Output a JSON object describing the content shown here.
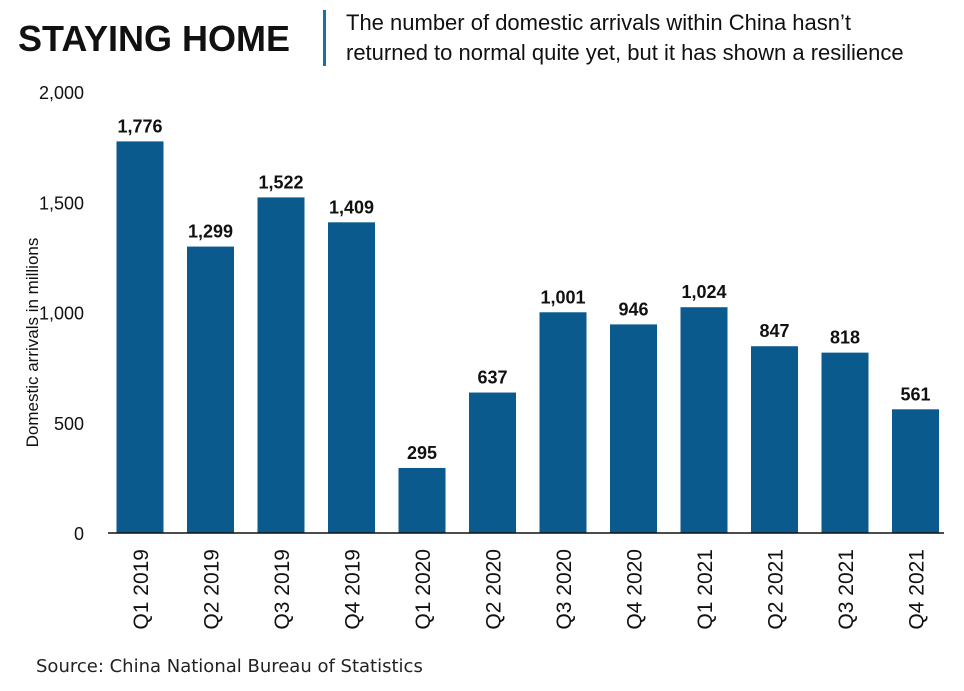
{
  "header": {
    "title": "STAYING HOME",
    "subtitle_line1": "The number of domestic arrivals within China hasn’t",
    "subtitle_line2": "returned to normal quite yet, but it has shown a resilience"
  },
  "source": "Source: China National Bureau of Statistics",
  "colors": {
    "bar": "#0a5a8e",
    "accent": "#1b6fa8"
  },
  "chart_data": {
    "type": "bar",
    "title": "",
    "xlabel": "",
    "ylabel": "Domestic arrivals in millions",
    "ylim": [
      0,
      2000
    ],
    "yticks": [
      0,
      500,
      1000,
      1500,
      2000
    ],
    "ytick_labels": [
      "0",
      "500",
      "1,000",
      "1,500",
      "2,000"
    ],
    "grid": false,
    "categories": [
      "Q1 2019",
      "Q2 2019",
      "Q3 2019",
      "Q4 2019",
      "Q1 2020",
      "Q2 2020",
      "Q3 2020",
      "Q4 2020",
      "Q1 2021",
      "Q2 2021",
      "Q3 2021",
      "Q4 2021"
    ],
    "values": [
      1776,
      1299,
      1522,
      1409,
      295,
      637,
      1001,
      946,
      1024,
      847,
      818,
      561
    ],
    "data_labels": [
      "1,776",
      "1,299",
      "1,522",
      "1,409",
      "295",
      "637",
      "1,001",
      "946",
      "1,024",
      "847",
      "818",
      "561"
    ]
  }
}
